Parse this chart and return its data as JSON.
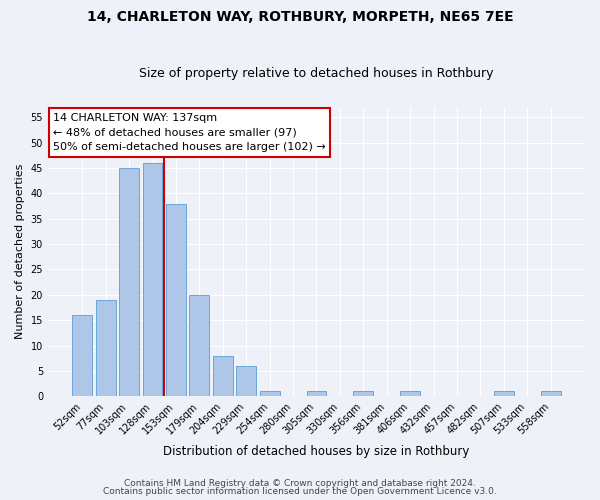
{
  "title": "14, CHARLETON WAY, ROTHBURY, MORPETH, NE65 7EE",
  "subtitle": "Size of property relative to detached houses in Rothbury",
  "xlabel": "Distribution of detached houses by size in Rothbury",
  "ylabel": "Number of detached properties",
  "categories": [
    "52sqm",
    "77sqm",
    "103sqm",
    "128sqm",
    "153sqm",
    "179sqm",
    "204sqm",
    "229sqm",
    "254sqm",
    "280sqm",
    "305sqm",
    "330sqm",
    "356sqm",
    "381sqm",
    "406sqm",
    "432sqm",
    "457sqm",
    "482sqm",
    "507sqm",
    "533sqm",
    "558sqm"
  ],
  "values": [
    16,
    19,
    45,
    46,
    38,
    20,
    8,
    6,
    1,
    0,
    1,
    0,
    1,
    0,
    1,
    0,
    0,
    0,
    1,
    0,
    1
  ],
  "bar_color": "#aec6e8",
  "bar_edge_color": "#5a9fd4",
  "property_line_x": 3.5,
  "annotation_text": "14 CHARLETON WAY: 137sqm\n← 48% of detached houses are smaller (97)\n50% of semi-detached houses are larger (102) →",
  "annotation_box_color": "#ffffff",
  "annotation_box_edge": "#cc0000",
  "vline_color": "#cc0000",
  "footer1": "Contains HM Land Registry data © Crown copyright and database right 2024.",
  "footer2": "Contains public sector information licensed under the Open Government Licence v3.0.",
  "ylim": [
    0,
    57
  ],
  "background_color": "#eef2f8",
  "grid_color": "#ffffff",
  "title_fontsize": 10,
  "subtitle_fontsize": 9,
  "xlabel_fontsize": 8.5,
  "ylabel_fontsize": 8,
  "tick_fontsize": 7,
  "annotation_fontsize": 8,
  "footer_fontsize": 6.5
}
